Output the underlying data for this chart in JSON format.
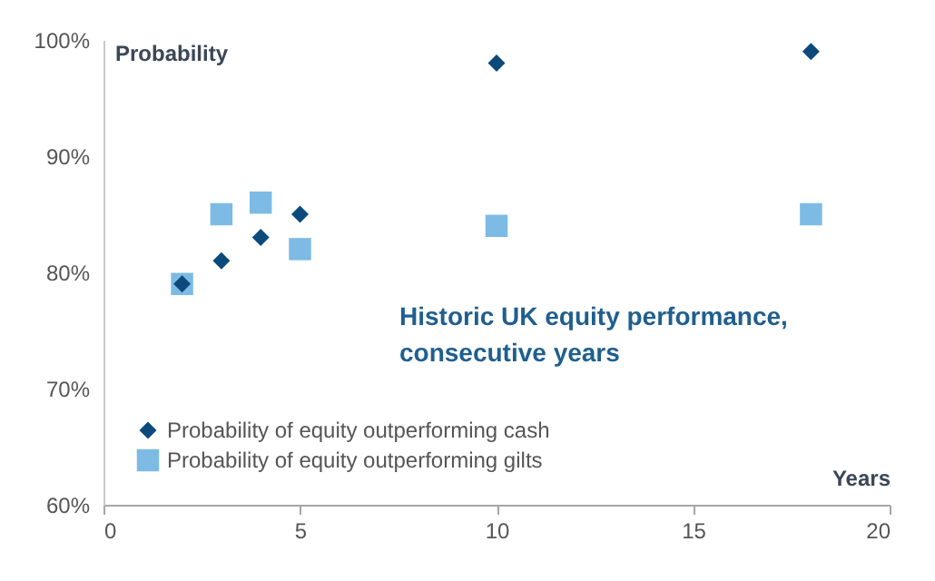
{
  "chart_data": {
    "type": "scatter",
    "ylabel": "Probability",
    "xlabel": "Years",
    "annotations": [
      "Historic UK equity performance, consecutive years"
    ],
    "xlim": [
      0,
      20
    ],
    "xticks": [
      0,
      5,
      10,
      15,
      20
    ],
    "ylim": [
      60,
      100
    ],
    "yticks": [
      {
        "value": 60,
        "label": "60%"
      },
      {
        "value": 70,
        "label": "70%"
      },
      {
        "value": 80,
        "label": "80%"
      },
      {
        "value": 90,
        "label": "90%"
      },
      {
        "value": 100,
        "label": "100%"
      }
    ],
    "grid": false,
    "legend": "bottom left",
    "series": [
      {
        "name": "Probability of equity outperforming cash",
        "color": "#0c4a7c",
        "marker": "diamond",
        "x": [
          2,
          3,
          4,
          5,
          10,
          18
        ],
        "values": [
          79,
          81,
          83,
          85,
          98,
          99
        ]
      },
      {
        "name": "Probability of equity outperforming gilts",
        "color": "#7dbbe4",
        "marker": "square",
        "x": [
          2,
          3,
          4,
          5,
          10,
          18
        ],
        "values": [
          79,
          85,
          86,
          82,
          84,
          85
        ]
      }
    ]
  }
}
